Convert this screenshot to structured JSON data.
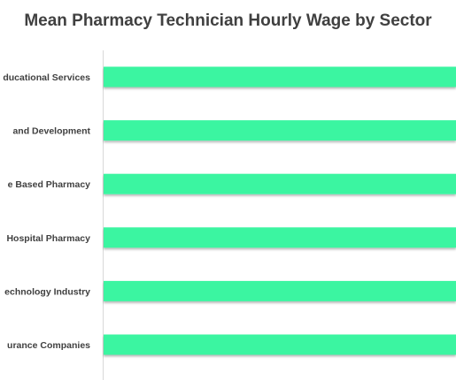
{
  "chart_data": {
    "type": "bar",
    "orientation": "horizontal",
    "title": "Mean Pharmacy Technician Hourly Wage by Sector",
    "categories": [
      "ducational Services",
      "and Development",
      "e Based Pharmacy",
      "Hospital Pharmacy",
      "echnology Industry",
      "urance Companies"
    ],
    "values": [
      1,
      1,
      1,
      1,
      1,
      1
    ],
    "bar_color": "#3af5a1",
    "grid": false,
    "legend": "none"
  }
}
